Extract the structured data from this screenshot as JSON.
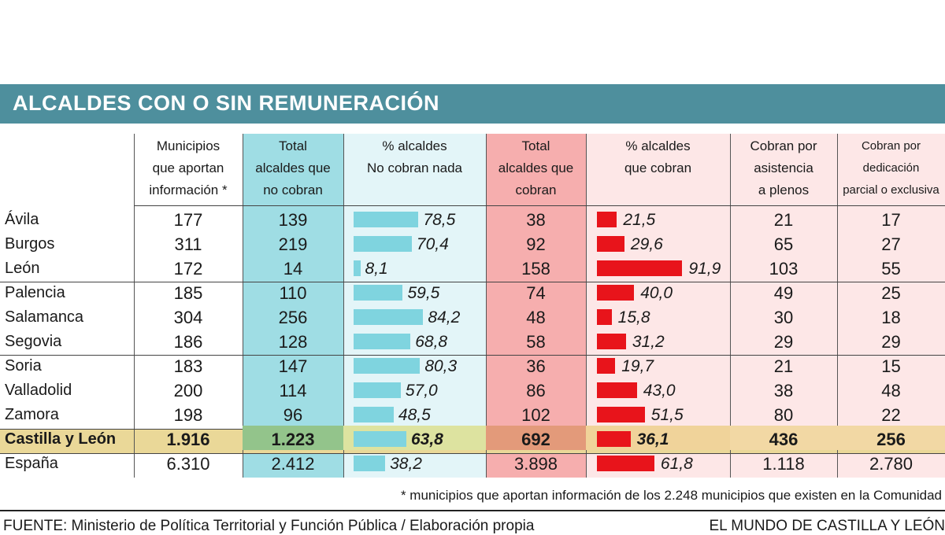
{
  "title": "ALCALDES CON O SIN REMUNERACIÓN",
  "colors": {
    "title_bar": "#4e8f9d",
    "col_no_cobran_total": "#9fdde4",
    "col_no_cobran_pct": "#e3f5f8",
    "col_cobran_total": "#f6aeae",
    "col_cobran_pct": "#fde7e7",
    "bar_no_cobran": "#7fd4df",
    "bar_cobran": "#e8141b",
    "highlight_row": "#ead898"
  },
  "headers": {
    "municipios": "Municipios\nque  aportan\ninformación *",
    "total_no_cobran": "Total\nalcaldes que\nno cobran",
    "pct_no_cobran": "% alcaldes\nNo cobran nada",
    "total_cobran": "Total\nalcaldes que\ncobran",
    "pct_cobran": "% alcaldes\nque cobran",
    "asistencia": "Cobran por\nasistencia\na plenos",
    "dedicacion": "Cobran por\ndedicación\nparcial o exclusiva"
  },
  "chart_data": {
    "type": "table",
    "title": "ALCALDES CON O SIN REMUNERACIÓN",
    "columns": [
      "Municipios que aportan información *",
      "Total alcaldes que no cobran",
      "% alcaldes No cobran nada",
      "Total alcaldes que cobran",
      "% alcaldes que cobran",
      "Cobran por asistencia a plenos",
      "Cobran por dedicación parcial o exclusiva"
    ],
    "rows": [
      {
        "label": "Ávila",
        "municipios": "177",
        "total_no": "139",
        "pct_no": 78.5,
        "pct_no_label": "78,5",
        "total_si": "38",
        "pct_si": 21.5,
        "pct_si_label": "21,5",
        "asistencia": "21",
        "dedicacion": "17"
      },
      {
        "label": "Burgos",
        "municipios": "311",
        "total_no": "219",
        "pct_no": 70.4,
        "pct_no_label": "70,4",
        "total_si": "92",
        "pct_si": 29.6,
        "pct_si_label": "29,6",
        "asistencia": "65",
        "dedicacion": "27"
      },
      {
        "label": "León",
        "municipios": "172",
        "total_no": "14",
        "pct_no": 8.1,
        "pct_no_label": "8,1",
        "total_si": "158",
        "pct_si": 91.9,
        "pct_si_label": "91,9",
        "asistencia": "103",
        "dedicacion": "55"
      },
      {
        "label": "Palencia",
        "municipios": "185",
        "total_no": "110",
        "pct_no": 59.5,
        "pct_no_label": "59,5",
        "total_si": "74",
        "pct_si": 40.0,
        "pct_si_label": "40,0",
        "asistencia": "49",
        "dedicacion": "25"
      },
      {
        "label": "Salamanca",
        "municipios": "304",
        "total_no": "256",
        "pct_no": 84.2,
        "pct_no_label": "84,2",
        "total_si": "48",
        "pct_si": 15.8,
        "pct_si_label": "15,8",
        "asistencia": "30",
        "dedicacion": "18"
      },
      {
        "label": "Segovia",
        "municipios": "186",
        "total_no": "128",
        "pct_no": 68.8,
        "pct_no_label": "68,8",
        "total_si": "58",
        "pct_si": 31.2,
        "pct_si_label": "31,2",
        "asistencia": "29",
        "dedicacion": "29"
      },
      {
        "label": "Soria",
        "municipios": "183",
        "total_no": "147",
        "pct_no": 80.3,
        "pct_no_label": "80,3",
        "total_si": "36",
        "pct_si": 19.7,
        "pct_si_label": "19,7",
        "asistencia": "21",
        "dedicacion": "15"
      },
      {
        "label": "Valladolid",
        "municipios": "200",
        "total_no": "114",
        "pct_no": 57.0,
        "pct_no_label": "57,0",
        "total_si": "86",
        "pct_si": 43.0,
        "pct_si_label": "43,0",
        "asistencia": "38",
        "dedicacion": "48"
      },
      {
        "label": "Zamora",
        "municipios": "198",
        "total_no": "96",
        "pct_no": 48.5,
        "pct_no_label": "48,5",
        "total_si": "102",
        "pct_si": 51.5,
        "pct_si_label": "51,5",
        "asistencia": "80",
        "dedicacion": "22"
      },
      {
        "label": "Castilla y León",
        "municipios": "1.916",
        "total_no": "1.223",
        "pct_no": 63.8,
        "pct_no_label": "63,8",
        "total_si": "692",
        "pct_si": 36.1,
        "pct_si_label": "36,1",
        "asistencia": "436",
        "dedicacion": "256",
        "highlight": true
      },
      {
        "label": "España",
        "municipios": "6.310",
        "total_no": "2.412",
        "pct_no": 38.2,
        "pct_no_label": "38,2",
        "total_si": "3.898",
        "pct_si": 61.8,
        "pct_si_label": "61,8",
        "asistencia": "1.118",
        "dedicacion": "2.780"
      }
    ]
  },
  "footnote": "* municipios que aportan información de los 2.248 municipios que existen en la Comunidad",
  "source": "FUENTE:  Ministerio de Política Territorial y Función Pública / Elaboración propia",
  "brand": "EL MUNDO DE CASTILLA Y LEÓN"
}
